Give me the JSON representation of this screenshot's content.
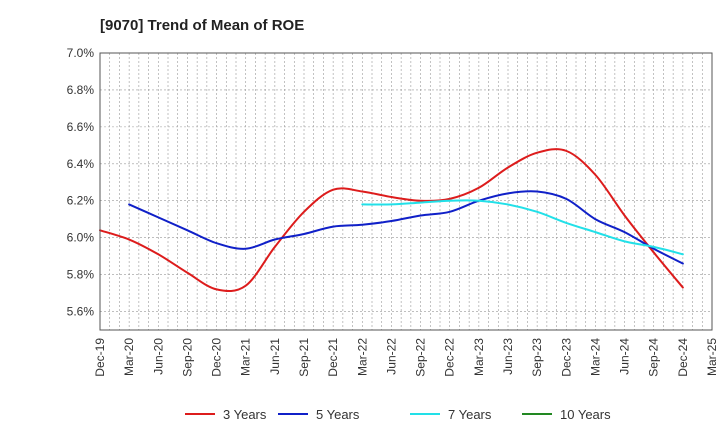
{
  "chart_data": {
    "type": "line",
    "title": "[9070]  Trend of Mean of ROE",
    "xlabel": "",
    "ylabel": "",
    "ylim": [
      5.5,
      7.0
    ],
    "yticks": [
      "5.6%",
      "5.8%",
      "6.0%",
      "6.2%",
      "6.4%",
      "6.6%",
      "6.8%",
      "7.0%"
    ],
    "ytick_values": [
      5.6,
      5.8,
      6.0,
      6.2,
      6.4,
      6.6,
      6.8,
      7.0
    ],
    "x": [
      "Dec-19",
      "Mar-20",
      "Jun-20",
      "Sep-20",
      "Dec-20",
      "Mar-21",
      "Jun-21",
      "Sep-21",
      "Dec-21",
      "Mar-22",
      "Jun-22",
      "Sep-22",
      "Dec-22",
      "Mar-23",
      "Jun-23",
      "Sep-23",
      "Dec-23",
      "Mar-24",
      "Jun-24",
      "Sep-24",
      "Dec-24",
      "Mar-25"
    ],
    "grid": true,
    "legend_position": "bottom",
    "series": [
      {
        "name": "3 Years",
        "color": "#dd1c1c",
        "values": [
          6.04,
          5.99,
          5.91,
          5.81,
          5.72,
          5.74,
          5.95,
          6.14,
          6.26,
          6.25,
          6.22,
          6.2,
          6.21,
          6.27,
          6.38,
          6.46,
          6.47,
          6.34,
          6.12,
          5.92,
          5.73,
          null
        ]
      },
      {
        "name": "5 Years",
        "color": "#1020c8",
        "values": [
          null,
          6.18,
          6.11,
          6.04,
          5.97,
          5.94,
          5.99,
          6.02,
          6.06,
          6.07,
          6.09,
          6.12,
          6.14,
          6.2,
          6.24,
          6.25,
          6.21,
          6.1,
          6.03,
          5.94,
          5.86,
          null
        ]
      },
      {
        "name": "7 Years",
        "color": "#22e0e8",
        "values": [
          null,
          null,
          null,
          null,
          null,
          null,
          null,
          null,
          null,
          6.18,
          6.18,
          6.19,
          6.2,
          6.2,
          6.18,
          6.14,
          6.08,
          6.03,
          5.98,
          5.95,
          5.91,
          null
        ]
      },
      {
        "name": "10 Years",
        "color": "#228822",
        "values": [
          null,
          null,
          null,
          null,
          null,
          null,
          null,
          null,
          null,
          null,
          null,
          null,
          null,
          null,
          null,
          null,
          null,
          null,
          null,
          null,
          null,
          null
        ]
      }
    ]
  }
}
